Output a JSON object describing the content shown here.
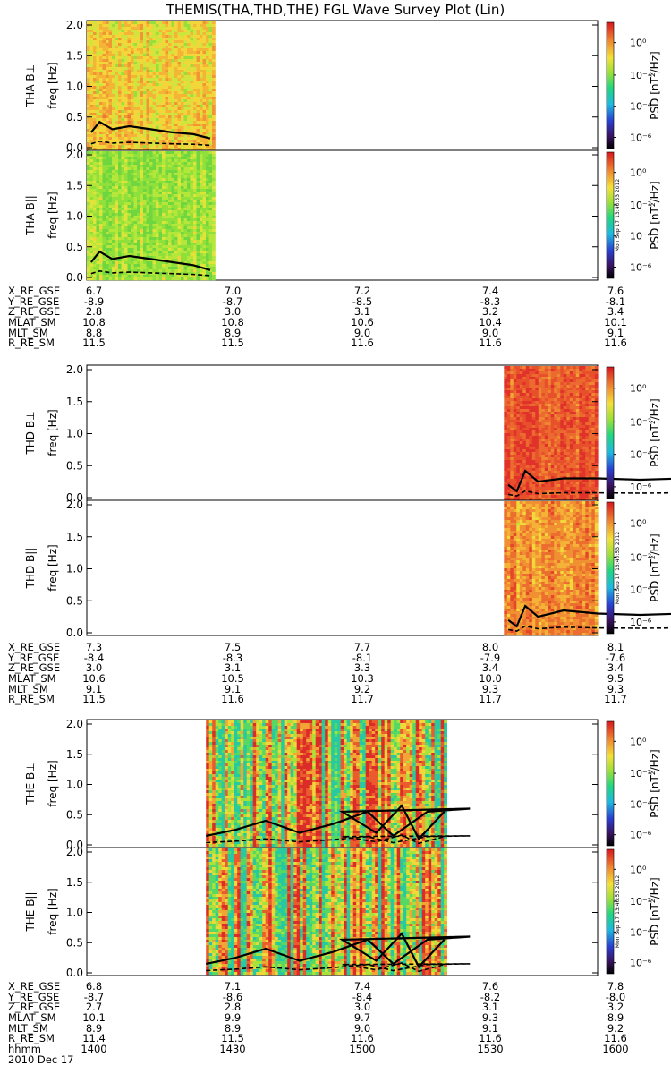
{
  "title": "THEMIS(THA,THD,THE) FGL Wave Survey Plot (Lin)",
  "colorbar": {
    "label": "PSD [nT²/Hz]",
    "ticks": [
      "10⁰",
      "10⁻²",
      "10⁻⁴",
      "10⁻⁶"
    ],
    "stamp": "Mon Sep 17 13:46:53 2012"
  },
  "y_ticks": [
    "2.0",
    "1.5",
    "1.0",
    "0.5",
    "0.0"
  ],
  "y_axis": {
    "unit_label": "freq [Hz]",
    "range": [
      0,
      2
    ]
  },
  "panels": [
    {
      "label": "THA B⊥",
      "probe": "tha",
      "data_range": [
        1400,
        1430
      ],
      "level": "med",
      "line_peaks": [
        [
          1401,
          0.25
        ],
        [
          1403,
          0.42
        ],
        [
          1406,
          0.3
        ],
        [
          1410,
          0.35
        ],
        [
          1415,
          0.3
        ],
        [
          1420,
          0.25
        ],
        [
          1425,
          0.22
        ],
        [
          1429,
          0.15
        ]
      ]
    },
    {
      "label": "THA B||",
      "probe": "tha",
      "data_range": [
        1400,
        1430
      ],
      "level": "low",
      "line_peaks": [
        [
          1401,
          0.25
        ],
        [
          1403,
          0.42
        ],
        [
          1406,
          0.3
        ],
        [
          1410,
          0.35
        ],
        [
          1415,
          0.3
        ],
        [
          1420,
          0.25
        ],
        [
          1425,
          0.2
        ],
        [
          1429,
          0.12
        ]
      ]
    },
    {
      "label": "THD B⊥",
      "probe": "thd",
      "data_range": [
        1538,
        1600
      ],
      "level": "high",
      "line_peaks": [
        [
          1539,
          0.2
        ],
        [
          1541,
          0.1
        ],
        [
          1543,
          0.42
        ],
        [
          1546,
          0.25
        ],
        [
          1552,
          0.3
        ],
        [
          1560,
          0.3
        ],
        [
          1570,
          0.28
        ],
        [
          1580,
          0.3
        ],
        [
          1590,
          0.28
        ],
        [
          1599,
          0.25
        ]
      ]
    },
    {
      "label": "THD B||",
      "probe": "thd",
      "data_range": [
        1538,
        1600
      ],
      "level": "medhigh",
      "line_peaks": [
        [
          1539,
          0.2
        ],
        [
          1541,
          0.1
        ],
        [
          1543,
          0.42
        ],
        [
          1546,
          0.25
        ],
        [
          1552,
          0.35
        ],
        [
          1560,
          0.3
        ],
        [
          1570,
          0.28
        ],
        [
          1580,
          0.3
        ],
        [
          1590,
          0.28
        ],
        [
          1599,
          0.25
        ]
      ]
    },
    {
      "label": "THE B⊥",
      "probe": "the",
      "data_range": [
        1428,
        1524
      ],
      "level": "mixed",
      "line_peaks": [
        [
          1428,
          0.15
        ],
        [
          1435,
          0.25
        ],
        [
          1442,
          0.4
        ],
        [
          1450,
          0.2
        ],
        [
          1458,
          0.35
        ],
        [
          1466,
          0.55
        ],
        [
          1472,
          0.15
        ],
        [
          1480,
          0.55
        ],
        [
          1490,
          0.6
        ],
        [
          1500,
          0.55
        ],
        [
          1508,
          0.2
        ],
        [
          1514,
          0.65
        ],
        [
          1518,
          0.1
        ],
        [
          1524,
          0.55
        ]
      ]
    },
    {
      "label": "THE B||",
      "probe": "the",
      "data_range": [
        1428,
        1524
      ],
      "level": "mixed",
      "line_peaks": [
        [
          1428,
          0.15
        ],
        [
          1435,
          0.25
        ],
        [
          1442,
          0.4
        ],
        [
          1450,
          0.2
        ],
        [
          1458,
          0.35
        ],
        [
          1466,
          0.55
        ],
        [
          1472,
          0.15
        ],
        [
          1480,
          0.55
        ],
        [
          1490,
          0.6
        ],
        [
          1500,
          0.55
        ],
        [
          1508,
          0.2
        ],
        [
          1514,
          0.65
        ],
        [
          1518,
          0.1
        ],
        [
          1524,
          0.55
        ]
      ]
    }
  ],
  "ephemeris": [
    {
      "rows": [
        {
          "name": "X_RE_GSE",
          "values": [
            "6.7",
            "7.0",
            "7.2",
            "7.4",
            "7.6"
          ]
        },
        {
          "name": "Y_RE_GSE",
          "values": [
            "-8.9",
            "-8.7",
            "-8.5",
            "-8.3",
            "-8.1"
          ]
        },
        {
          "name": "Z_RE_GSE",
          "values": [
            "2.8",
            "3.0",
            "3.1",
            "3.2",
            "3.4"
          ]
        },
        {
          "name": "MLAT_SM",
          "values": [
            "10.8",
            "10.8",
            "10.6",
            "10.4",
            "10.1"
          ]
        },
        {
          "name": "MLT_SM",
          "values": [
            "8.8",
            "8.9",
            "9.0",
            "9.0",
            "9.1"
          ]
        },
        {
          "name": "R_RE_SM",
          "values": [
            "11.5",
            "11.5",
            "11.6",
            "11.6",
            "11.6"
          ]
        }
      ]
    },
    {
      "rows": [
        {
          "name": "X_RE_GSE",
          "values": [
            "7.3",
            "7.5",
            "7.7",
            "8.0",
            "8.1"
          ]
        },
        {
          "name": "Y_RE_GSE",
          "values": [
            "-8.4",
            "-8.3",
            "-8.1",
            "-7.9",
            "-7.6"
          ]
        },
        {
          "name": "Z_RE_GSE",
          "values": [
            "3.0",
            "3.1",
            "3.3",
            "3.4",
            "3.4"
          ]
        },
        {
          "name": "MLAT_SM",
          "values": [
            "10.6",
            "10.5",
            "10.3",
            "10.0",
            "9.5"
          ]
        },
        {
          "name": "MLT_SM",
          "values": [
            "9.1",
            "9.1",
            "9.2",
            "9.3",
            "9.3"
          ]
        },
        {
          "name": "R_RE_SM",
          "values": [
            "11.5",
            "11.6",
            "11.7",
            "11.7",
            "11.7"
          ]
        }
      ]
    },
    {
      "rows": [
        {
          "name": "X_RE_GSE",
          "values": [
            "6.8",
            "7.1",
            "7.4",
            "7.6",
            "7.8"
          ]
        },
        {
          "name": "Y_RE_GSE",
          "values": [
            "-8.7",
            "-8.6",
            "-8.4",
            "-8.2",
            "-8.0"
          ]
        },
        {
          "name": "Z_RE_GSE",
          "values": [
            "2.7",
            "2.8",
            "3.0",
            "3.1",
            "3.2"
          ]
        },
        {
          "name": "MLAT_SM",
          "values": [
            "10.1",
            "9.9",
            "9.7",
            "9.3",
            "8.9"
          ]
        },
        {
          "name": "MLT_SM",
          "values": [
            "8.9",
            "8.9",
            "9.0",
            "9.1",
            "9.2"
          ]
        },
        {
          "name": "R_RE_SM",
          "values": [
            "11.4",
            "11.5",
            "11.6",
            "11.6",
            "11.6"
          ]
        },
        {
          "name": "hhmm",
          "values": [
            "1400",
            "1430",
            "1500",
            "1530",
            "1600"
          ]
        }
      ]
    }
  ],
  "date": "2010 Dec 17",
  "chart_data": {
    "type": "heatmap",
    "title": "THEMIS(THA,THD,THE) FGL Wave Survey Plot (Lin)",
    "xlabel": "hhmm",
    "x_ticks": [
      "1400",
      "1430",
      "1500",
      "1530",
      "1600"
    ],
    "xlim": [
      1400,
      1600
    ],
    "ylabel": "freq [Hz]",
    "ylim": [
      0,
      2
    ],
    "colorbar_label": "PSD [nT²/Hz]",
    "colorbar_scale": "log",
    "colorbar_ticks": [
      "1e0",
      "1e-2",
      "1e-4",
      "1e-6"
    ],
    "series": [
      {
        "name": "THA B⊥"
      },
      {
        "name": "THA B||"
      },
      {
        "name": "THD B⊥"
      },
      {
        "name": "THD B||"
      },
      {
        "name": "THE B⊥"
      },
      {
        "name": "THE B||"
      }
    ]
  }
}
